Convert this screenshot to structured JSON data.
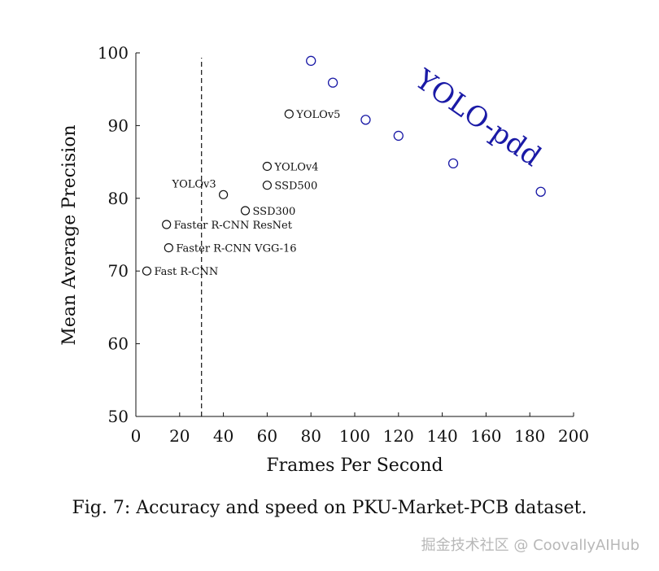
{
  "chart_data": {
    "type": "scatter",
    "xlabel": "Frames Per Second",
    "ylabel": "Mean Average Precision",
    "xlim": [
      0,
      200
    ],
    "ylim": [
      50,
      100
    ],
    "xticks": [
      0,
      20,
      40,
      60,
      80,
      100,
      120,
      140,
      160,
      180,
      200
    ],
    "yticks": [
      50,
      60,
      70,
      80,
      90,
      100
    ],
    "reference_line_x": 30,
    "points": [
      {
        "name": "Fast R-CNN",
        "x": 5,
        "y": 70
      },
      {
        "name": "Faster R-CNN VGG-16",
        "x": 15,
        "y": 73.2
      },
      {
        "name": "Faster R-CNN ResNet",
        "x": 14,
        "y": 76.4
      },
      {
        "name": "YOLOv3",
        "x": 40,
        "y": 80.5
      },
      {
        "name": "SSD300",
        "x": 50,
        "y": 78.3
      },
      {
        "name": "SSD500",
        "x": 60,
        "y": 81.8
      },
      {
        "name": "YOLOv4",
        "x": 60,
        "y": 84.4
      },
      {
        "name": "YOLOv5",
        "x": 70,
        "y": 91.6
      }
    ],
    "series": [
      {
        "name": "YOLO-pdd",
        "color": "#1a1aa6",
        "x": [
          80,
          90,
          105,
          120,
          145,
          185
        ],
        "values": [
          98.9,
          95.9,
          90.8,
          88.6,
          84.8,
          80.9
        ]
      }
    ]
  },
  "caption": "Fig. 7: Accuracy and speed on PKU-Market-PCB dataset.",
  "watermark": "掘金技术社区 @ CoovallyAIHub",
  "colors": {
    "series": "#1a1aa6",
    "ink": "#111111"
  }
}
